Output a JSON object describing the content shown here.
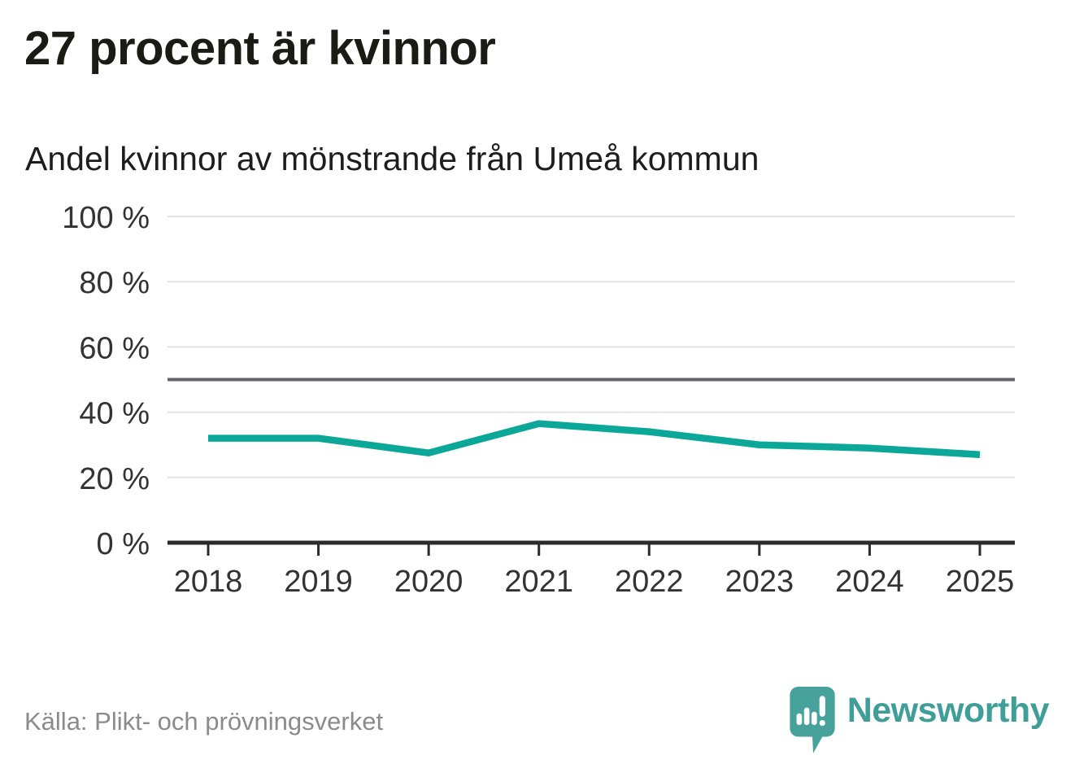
{
  "header": {
    "title": "27 procent är kvinnor",
    "subtitle": "Andel kvinnor av mönstrande från Umeå kommun"
  },
  "chart_data": {
    "type": "line",
    "title": "Andel kvinnor av mönstrande från Umeå kommun",
    "x": [
      "2018",
      "2019",
      "2020",
      "2021",
      "2022",
      "2023",
      "2024",
      "2025"
    ],
    "series": [
      {
        "name": "Andel kvinnor av mönstrande",
        "values": [
          32,
          32,
          27.5,
          36.5,
          34,
          30,
          29,
          27
        ],
        "color": "#0ba89a"
      }
    ],
    "xlabel": "",
    "ylabel": "",
    "ylim": [
      0,
      100
    ],
    "yticks": [
      0,
      20,
      40,
      60,
      80,
      100
    ],
    "ytick_labels": [
      "0 %",
      "20 %",
      "40 %",
      "60 %",
      "80 %",
      "100 %"
    ],
    "reference_line": {
      "value": 50,
      "color": "#64646a"
    },
    "grid": "horizontal-only",
    "legend": "none"
  },
  "footer": {
    "source": "Källa: Plikt- och prövningsverket",
    "brand": "Newsworthy"
  },
  "colors": {
    "title_text": "#1b1b15",
    "axis_text": "#333333",
    "grid": "#e3e3e3",
    "axis": "#2b2b2b",
    "reference": "#64646a",
    "line": "#0ba89a",
    "source_text": "#8b8b8b",
    "brand_teal": "#3f9e97",
    "logo_bubble": "#47a29b",
    "background": "#ffffff"
  },
  "icons": {
    "logo": "newsworthy-speech-bubble-barchart-icon"
  }
}
